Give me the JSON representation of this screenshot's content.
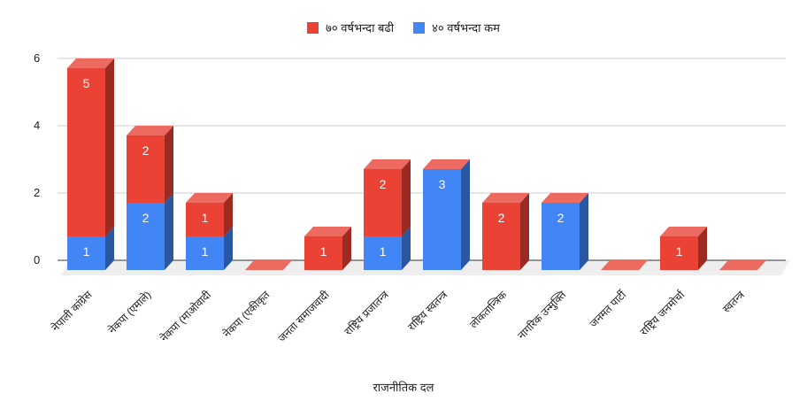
{
  "legend": [
    {
      "label": "७० वर्षभन्दा बढी",
      "color": "#ea4335"
    },
    {
      "label": "४० वर्षभन्दा कम",
      "color": "#4285f4"
    }
  ],
  "colors": {
    "red_front": "#ea4335",
    "red_top": "#ed6a60",
    "red_side": "#9b2a22",
    "blue_front": "#4285f4",
    "blue_top": "#6ea2f7",
    "blue_side": "#2b56a0",
    "grid": "#cccccc",
    "floor": "#eeeeee",
    "axis": "#333333"
  },
  "chart_data": {
    "type": "bar",
    "stacked": true,
    "three_d": true,
    "title": "",
    "xlabel": "राजनीतिक दल",
    "ylabel": "",
    "ylim": [
      0,
      6
    ],
    "yticks": [
      0,
      2,
      4,
      6
    ],
    "legend_position": "top",
    "grid": true,
    "categories": [
      "नेपाली कांग्रेस",
      "नेकपा (एमाले)",
      "नेकपा (माओवादी",
      "नेकपा (एकीकृत",
      "जनता समाजवादी",
      "राष्ट्रिय प्रजातन्त्र",
      "राष्ट्रिय स्वतन्त्र",
      "लोकतान्त्रिक",
      "नागरिक उन्मुक्ति",
      "जनमत पार्टी",
      "राष्ट्रिय जनमोर्चा",
      "स्वतन्त्र"
    ],
    "series": [
      {
        "name": "४० वर्षभन्दा कम",
        "color": "#4285f4",
        "values": [
          1,
          2,
          1,
          0,
          0,
          1,
          3,
          0,
          2,
          0,
          0,
          0
        ]
      },
      {
        "name": "७० वर्षभन्दा बढी",
        "color": "#ea4335",
        "values": [
          5,
          2,
          1,
          0,
          1,
          2,
          0,
          2,
          0,
          0,
          1,
          0
        ]
      }
    ]
  }
}
